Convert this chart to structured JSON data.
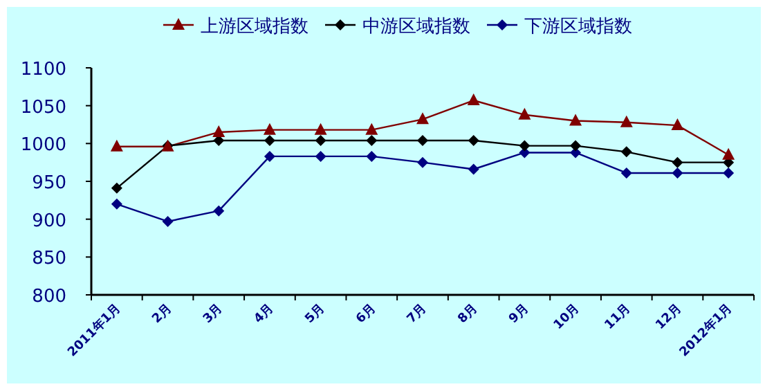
{
  "chart_data": {
    "type": "line",
    "categories": [
      "2011年1月",
      "2月",
      "3月",
      "4月",
      "5月",
      "6月",
      "7月",
      "8月",
      "9月",
      "10月",
      "11月",
      "12月",
      "2012年1月"
    ],
    "series": [
      {
        "name": "上游区域指数",
        "color": "#800000",
        "marker": "triangle",
        "values": [
          996,
          996,
          1015,
          1018,
          1018,
          1018,
          1032,
          1057,
          1038,
          1030,
          1028,
          1024,
          985
        ]
      },
      {
        "name": "中游区域指数",
        "color": "#000000",
        "marker": "diamond",
        "values": [
          941,
          997,
          1004,
          1004,
          1004,
          1004,
          1004,
          1004,
          997,
          997,
          989,
          975,
          975
        ]
      },
      {
        "name": "下游区域指数",
        "color": "#000080",
        "marker": "diamond",
        "values": [
          920,
          897,
          911,
          983,
          983,
          983,
          975,
          966,
          988,
          988,
          961,
          961,
          961
        ]
      }
    ],
    "ylim": [
      800,
      1100
    ],
    "yticks": [
      800,
      850,
      900,
      950,
      1000,
      1050,
      1100
    ],
    "grid": false,
    "legend": "top"
  }
}
